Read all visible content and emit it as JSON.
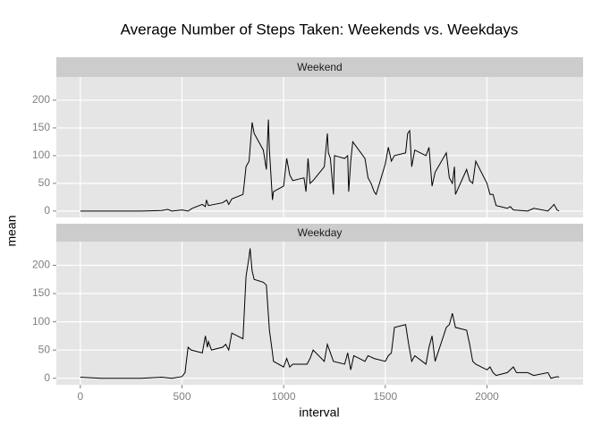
{
  "chart_data": {
    "type": "line",
    "title": "Average Number of Steps Taken: Weekends vs. Weekdays",
    "xlabel": "interval",
    "ylabel": "mean",
    "xlim": [
      -118,
      2473
    ],
    "ylim": [
      -11.5,
      241.9
    ],
    "xticks": [
      0,
      500,
      1000,
      1500,
      2000
    ],
    "yticks": [
      0,
      50,
      100,
      150,
      200
    ],
    "grid": true,
    "color": "#000000",
    "series": [
      {
        "name": "Weekend",
        "x": [
          0,
          100,
          200,
          300,
          400,
          430,
          450,
          500,
          530,
          550,
          600,
          615,
          620,
          630,
          700,
          720,
          730,
          745,
          800,
          805,
          815,
          830,
          845,
          855,
          900,
          915,
          925,
          930,
          945,
          950,
          1000,
          1015,
          1030,
          1045,
          1100,
          1110,
          1120,
          1130,
          1145,
          1200,
          1215,
          1220,
          1230,
          1245,
          1250,
          1300,
          1315,
          1320,
          1330,
          1340,
          1400,
          1415,
          1430,
          1445,
          1455,
          1500,
          1515,
          1530,
          1545,
          1600,
          1610,
          1620,
          1630,
          1645,
          1700,
          1715,
          1730,
          1745,
          1800,
          1815,
          1830,
          1840,
          1845,
          1900,
          1915,
          1930,
          1945,
          2000,
          2015,
          2030,
          2045,
          2100,
          2115,
          2130,
          2200,
          2230,
          2300,
          2330,
          2345,
          2355
        ],
        "values": [
          0,
          0,
          0,
          0,
          1,
          3,
          0,
          2,
          0,
          5,
          12,
          8,
          20,
          10,
          15,
          20,
          12,
          22,
          30,
          45,
          80,
          90,
          160,
          140,
          110,
          75,
          165,
          110,
          20,
          35,
          45,
          95,
          65,
          55,
          60,
          35,
          95,
          50,
          55,
          80,
          140,
          105,
          95,
          30,
          100,
          95,
          100,
          35,
          90,
          125,
          95,
          60,
          50,
          35,
          30,
          85,
          115,
          90,
          100,
          105,
          140,
          145,
          80,
          110,
          100,
          115,
          45,
          70,
          105,
          60,
          50,
          80,
          30,
          75,
          55,
          50,
          90,
          50,
          30,
          30,
          10,
          5,
          8,
          2,
          0,
          5,
          0,
          12,
          2,
          0
        ]
      },
      {
        "name": "Weekday",
        "x": [
          0,
          100,
          200,
          300,
          400,
          450,
          500,
          515,
          530,
          545,
          600,
          615,
          625,
          630,
          645,
          700,
          715,
          730,
          745,
          800,
          815,
          830,
          835,
          845,
          855,
          900,
          915,
          930,
          945,
          950,
          1000,
          1015,
          1030,
          1045,
          1100,
          1115,
          1130,
          1145,
          1200,
          1215,
          1230,
          1245,
          1300,
          1315,
          1330,
          1345,
          1400,
          1415,
          1445,
          1500,
          1515,
          1530,
          1545,
          1600,
          1615,
          1630,
          1645,
          1700,
          1715,
          1730,
          1745,
          1800,
          1815,
          1830,
          1845,
          1900,
          1915,
          1930,
          1945,
          2000,
          2015,
          2030,
          2045,
          2100,
          2115,
          2130,
          2145,
          2200,
          2230,
          2300,
          2315,
          2345,
          2355
        ],
        "values": [
          2,
          0,
          0,
          0,
          2,
          0,
          3,
          10,
          55,
          50,
          45,
          75,
          55,
          65,
          50,
          55,
          60,
          50,
          80,
          70,
          180,
          215,
          230,
          190,
          175,
          170,
          165,
          85,
          45,
          30,
          20,
          35,
          20,
          25,
          25,
          25,
          35,
          50,
          30,
          60,
          45,
          30,
          25,
          45,
          15,
          40,
          30,
          40,
          35,
          30,
          40,
          45,
          90,
          95,
          60,
          30,
          40,
          25,
          55,
          75,
          30,
          90,
          95,
          115,
          90,
          85,
          60,
          30,
          25,
          15,
          20,
          10,
          5,
          10,
          15,
          20,
          10,
          10,
          5,
          10,
          0,
          3,
          2
        ]
      }
    ]
  }
}
